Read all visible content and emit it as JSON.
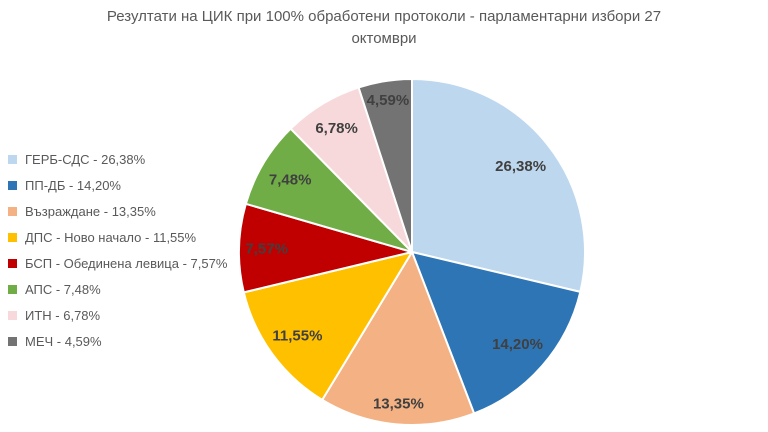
{
  "title": "Резултати на ЦИК при 100% обработени протоколи - парламентарни избори 27 октомври",
  "chart_data": {
    "type": "pie",
    "title": "Резултати на ЦИК при 100% обработени протоколи - парламентарни избори 27 октомври",
    "series": [
      {
        "name": "ГЕРБ-СДС",
        "value": 26.38,
        "label": "26,38%",
        "legend_label": "ГЕРБ-СДС - 26,38%",
        "color": "#BDD7EE"
      },
      {
        "name": "ПП-ДБ",
        "value": 14.2,
        "label": "14,20%",
        "legend_label": "ПП-ДБ - 14,20%",
        "color": "#2E75B6"
      },
      {
        "name": "Възраждане",
        "value": 13.35,
        "label": "13,35%",
        "legend_label": "Възраждане - 13,35%",
        "color": "#F4B183"
      },
      {
        "name": "ДПС - Ново начало",
        "value": 11.55,
        "label": "11,55%",
        "legend_label": "ДПС - Ново начало - 11,55%",
        "color": "#FFC000"
      },
      {
        "name": "БСП - Обединена левица",
        "value": 7.57,
        "label": "7,57%",
        "legend_label": "БСП - Обединена левица - 7,57%",
        "color": "#C00000"
      },
      {
        "name": "АПС",
        "value": 7.48,
        "label": "7,48%",
        "legend_label": "АПС - 7,48%",
        "color": "#70AD47"
      },
      {
        "name": "ИТН",
        "value": 6.78,
        "label": "6,78%",
        "legend_label": "ИТН - 6,78%",
        "color": "#F8D9DB"
      },
      {
        "name": "МЕЧ",
        "value": 4.59,
        "label": "4,59%",
        "legend_label": "МЕЧ - 4,59%",
        "color": "#737373"
      }
    ],
    "layout": {
      "legend_position": "left",
      "start_angle_deg": 0,
      "direction": "clockwise",
      "normalized_to_full_circle": true,
      "label_radius_fractions": [
        0.8,
        0.81,
        0.88,
        0.82,
        0.84,
        0.82,
        0.84,
        0.89
      ]
    }
  },
  "colors": {
    "background": "#FFFFFF",
    "title_text": "#595959",
    "legend_text": "#595959",
    "data_label_text": "#404040",
    "slice_border": "#FFFFFF"
  }
}
